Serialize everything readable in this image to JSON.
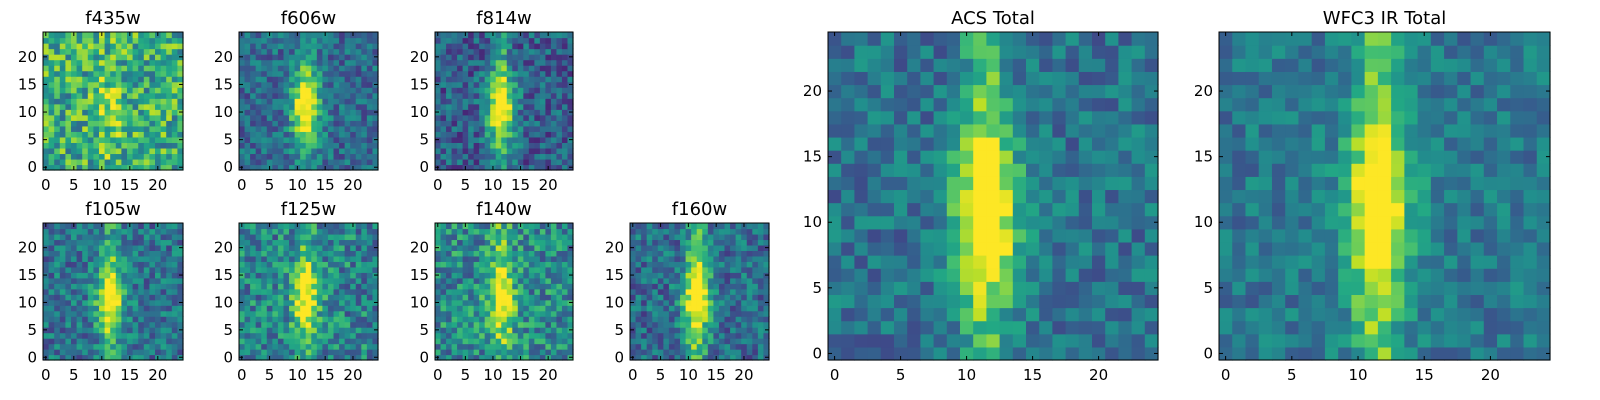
{
  "chart_data": [
    {
      "type": "heatmap",
      "title": "f435w",
      "xticks": [
        "0",
        "5",
        "10",
        "15",
        "20"
      ],
      "yticks": [
        "0",
        "5",
        "10",
        "15",
        "20"
      ],
      "xlim": [
        0,
        25
      ],
      "ylim": [
        0,
        25
      ],
      "grid_size": 25,
      "colormap": "viridis",
      "seed": 11,
      "bg": 0.62,
      "noise": 0.28,
      "peak": 0.18,
      "stripe": 0.05
    },
    {
      "type": "heatmap",
      "title": "f606w",
      "xticks": [
        "0",
        "5",
        "10",
        "15",
        "20"
      ],
      "yticks": [
        "0",
        "5",
        "10",
        "15",
        "20"
      ],
      "xlim": [
        0,
        25
      ],
      "ylim": [
        0,
        25
      ],
      "grid_size": 25,
      "colormap": "viridis",
      "seed": 23,
      "bg": 0.35,
      "noise": 0.18,
      "peak": 0.62,
      "stripe": 0.18
    },
    {
      "type": "heatmap",
      "title": "f814w",
      "xticks": [
        "0",
        "5",
        "10",
        "15",
        "20"
      ],
      "yticks": [
        "0",
        "5",
        "10",
        "15",
        "20"
      ],
      "xlim": [
        0,
        25
      ],
      "ylim": [
        0,
        25
      ],
      "grid_size": 25,
      "colormap": "viridis",
      "seed": 37,
      "bg": 0.3,
      "noise": 0.2,
      "peak": 0.62,
      "stripe": 0.24
    },
    {
      "type": "heatmap",
      "title": "f105w",
      "xticks": [
        "0",
        "5",
        "10",
        "15",
        "20"
      ],
      "yticks": [
        "0",
        "5",
        "10",
        "15",
        "20"
      ],
      "xlim": [
        0,
        25
      ],
      "ylim": [
        0,
        25
      ],
      "grid_size": 25,
      "colormap": "viridis",
      "seed": 41,
      "bg": 0.38,
      "noise": 0.2,
      "peak": 0.55,
      "stripe": 0.2
    },
    {
      "type": "heatmap",
      "title": "f125w",
      "xticks": [
        "0",
        "5",
        "10",
        "15",
        "20"
      ],
      "yticks": [
        "0",
        "5",
        "10",
        "15",
        "20"
      ],
      "xlim": [
        0,
        25
      ],
      "ylim": [
        0,
        25
      ],
      "grid_size": 25,
      "colormap": "viridis",
      "seed": 53,
      "bg": 0.45,
      "noise": 0.24,
      "peak": 0.45,
      "stripe": 0.22
    },
    {
      "type": "heatmap",
      "title": "f140w",
      "xticks": [
        "0",
        "5",
        "10",
        "15",
        "20"
      ],
      "yticks": [
        "0",
        "5",
        "10",
        "15",
        "20"
      ],
      "xlim": [
        0,
        25
      ],
      "ylim": [
        0,
        25
      ],
      "grid_size": 25,
      "colormap": "viridis",
      "seed": 67,
      "bg": 0.48,
      "noise": 0.24,
      "peak": 0.42,
      "stripe": 0.2
    },
    {
      "type": "heatmap",
      "title": "f160w",
      "xticks": [
        "0",
        "5",
        "10",
        "15",
        "20"
      ],
      "yticks": [
        "0",
        "5",
        "10",
        "15",
        "20"
      ],
      "xlim": [
        0,
        25
      ],
      "ylim": [
        0,
        25
      ],
      "grid_size": 25,
      "colormap": "viridis",
      "seed": 79,
      "bg": 0.36,
      "noise": 0.2,
      "peak": 0.55,
      "stripe": 0.32
    },
    {
      "type": "heatmap",
      "title": "ACS Total",
      "xticks": [
        "0",
        "5",
        "10",
        "15",
        "20"
      ],
      "yticks": [
        "0",
        "5",
        "10",
        "15",
        "20"
      ],
      "xlim": [
        0,
        25
      ],
      "ylim": [
        0,
        25
      ],
      "grid_size": 25,
      "colormap": "viridis",
      "seed": 97,
      "bg": 0.38,
      "noise": 0.16,
      "peak": 0.55,
      "stripe": 0.3
    },
    {
      "type": "heatmap",
      "title": "WFC3 IR Total",
      "xticks": [
        "0",
        "5",
        "10",
        "15",
        "20"
      ],
      "yticks": [
        "0",
        "5",
        "10",
        "15",
        "20"
      ],
      "xlim": [
        0,
        25
      ],
      "ylim": [
        0,
        25
      ],
      "grid_size": 25,
      "colormap": "viridis",
      "seed": 113,
      "bg": 0.4,
      "noise": 0.14,
      "peak": 0.5,
      "stripe": 0.34
    }
  ]
}
